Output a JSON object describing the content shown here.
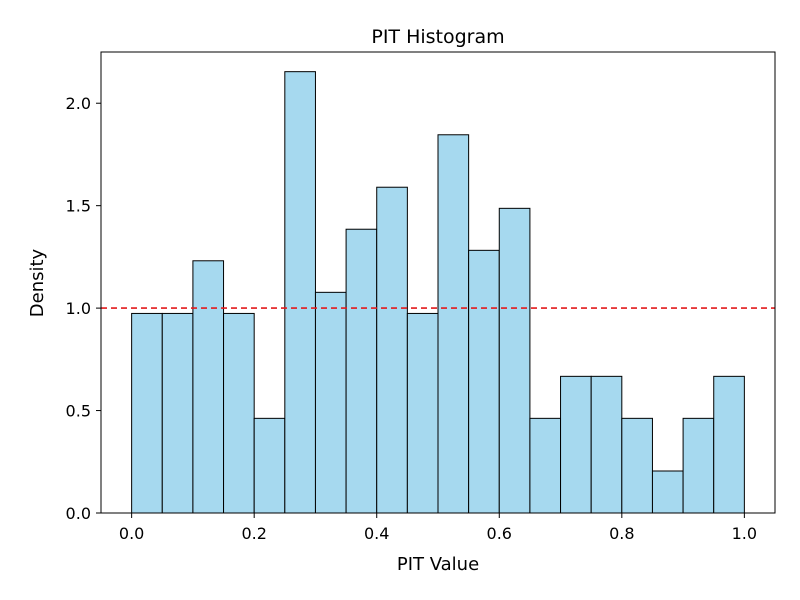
{
  "chart_data": {
    "type": "bar",
    "title": "PIT Histogram",
    "xlabel": "PIT Value",
    "ylabel": "Density",
    "xlim": [
      -0.05,
      1.05
    ],
    "ylim": [
      0,
      2.25
    ],
    "xticks": [
      0.0,
      0.2,
      0.4,
      0.6,
      0.8,
      1.0
    ],
    "xtick_labels": [
      "0.0",
      "0.2",
      "0.4",
      "0.6",
      "0.8",
      "1.0"
    ],
    "yticks": [
      0.0,
      0.5,
      1.0,
      1.5,
      2.0
    ],
    "ytick_labels": [
      "0.0",
      "0.5",
      "1.0",
      "1.5",
      "2.0"
    ],
    "bin_width": 0.05,
    "bin_starts": [
      0.0,
      0.05,
      0.1,
      0.15,
      0.2,
      0.25,
      0.3,
      0.35,
      0.4,
      0.45,
      0.5,
      0.55,
      0.6,
      0.65,
      0.7,
      0.75,
      0.8,
      0.85,
      0.9,
      0.95
    ],
    "values": [
      0.974,
      0.974,
      1.231,
      0.974,
      0.462,
      2.154,
      1.077,
      1.385,
      1.59,
      0.974,
      1.846,
      1.282,
      1.487,
      0.462,
      0.667,
      0.667,
      0.462,
      0.205,
      0.462,
      0.667
    ],
    "bar_color": "#a6d9ef",
    "bar_edge_color": "#000000",
    "reference_line": {
      "y": 1.0,
      "color": "#e41a1c",
      "style": "dashed"
    },
    "grid": false
  }
}
